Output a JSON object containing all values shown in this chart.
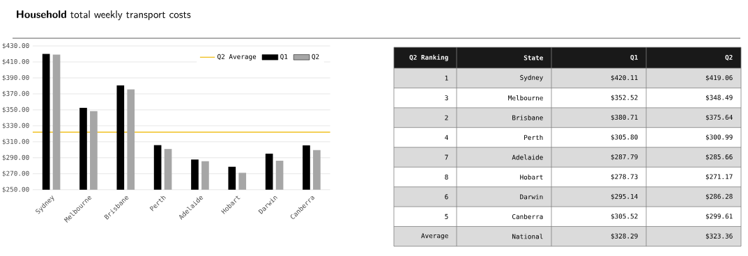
{
  "chart_data": [
    {
      "type": "bar",
      "title": "**Household** total weekly transport costs",
      "categories": [
        "Sydney",
        "Melbourne",
        "Brisbane",
        "Perth",
        "Adelaide",
        "Hobart",
        "Darwin",
        "Canberra"
      ],
      "series": [
        {
          "name": "Q1",
          "color": "#000000",
          "values": [
            420.11,
            352.52,
            380.71,
            305.8,
            287.79,
            278.73,
            295.14,
            305.52
          ]
        },
        {
          "name": "Q2",
          "color": "#a6a6a6",
          "values": [
            419.06,
            348.49,
            375.64,
            300.99,
            285.66,
            271.17,
            286.28,
            299.61
          ]
        }
      ],
      "ylim": [
        250,
        430
      ],
      "yticks": [
        {
          "value": 250,
          "label": "$250.00"
        },
        {
          "value": 270,
          "label": "$270.00"
        },
        {
          "value": 290,
          "label": "$290.00"
        },
        {
          "value": 310,
          "label": "$310.00"
        },
        {
          "value": 330,
          "label": "$330.00"
        },
        {
          "value": 350,
          "label": "$350.00"
        },
        {
          "value": 370,
          "label": "$370.00"
        },
        {
          "value": 390,
          "label": "$390.00"
        },
        {
          "value": 410,
          "label": "$410.00"
        },
        {
          "value": 430,
          "label": "$430.00"
        }
      ],
      "grid": "y",
      "legend": "top right",
      "ref_lines": [
        {
          "axis": "y",
          "value": 322,
          "label": "Q2 Average",
          "color": "#f0c020"
        }
      ]
    },
    {
      "type": "other",
      "annotations": [
        "Q2 Ranking",
        "State",
        "Q1",
        "Q2",
        "1",
        "Sydney",
        "$420.11",
        "$419.06",
        "3",
        "Melbourne",
        "$352.52",
        "$348.49",
        "2",
        "Brisbane",
        "$380.71",
        "$375.64",
        "4",
        "Perth",
        "$305.80",
        "$300.99",
        "7",
        "Adelaide",
        "$287.79",
        "$285.66",
        "8",
        "Hobart",
        "$278.73",
        "$271.17",
        "6",
        "Darwin",
        "$295.14",
        "$286.28",
        "5",
        "Canberra",
        "$305.52",
        "$299.61",
        "Average",
        "National",
        "$328.29",
        "$323.36"
      ]
    }
  ]
}
